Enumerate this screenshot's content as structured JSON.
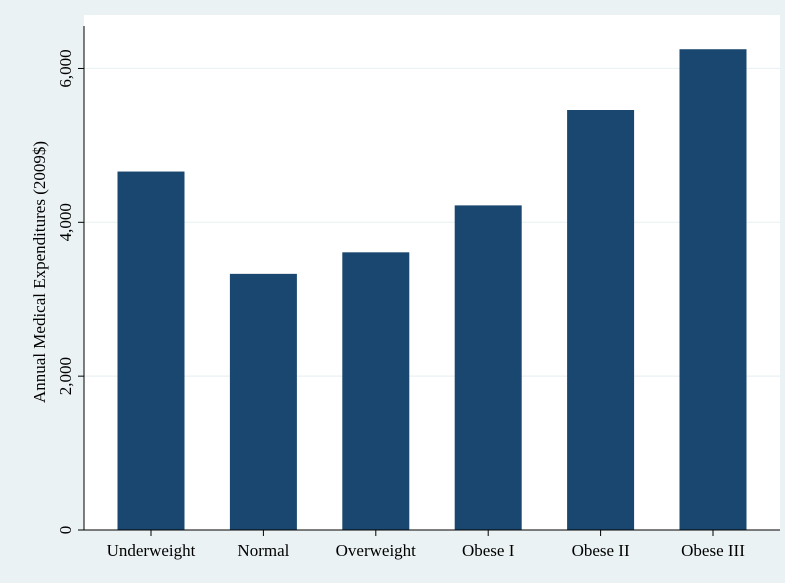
{
  "chart_data": {
    "type": "bar",
    "title": "",
    "xlabel": "",
    "ylabel": "Annual Medical Expenditures (2009$)",
    "categories": [
      "Underweight",
      "Normal",
      "Overweight",
      "Obese I",
      "Obese II",
      "Obese III"
    ],
    "values": [
      4660,
      3330,
      3610,
      4220,
      5460,
      6250
    ],
    "ylim": [
      0,
      6500
    ],
    "yticks": [
      0,
      2000,
      4000,
      6000
    ],
    "ytick_labels": [
      "0",
      "2,000",
      "4,000",
      "6,000"
    ],
    "grid": true,
    "legend": "none",
    "colors": {
      "bar": "#1a476f",
      "page_background": "#eaf2f3",
      "plot_background": "#ffffff",
      "grid": "#eaf2f3",
      "axis": "#000000"
    }
  }
}
